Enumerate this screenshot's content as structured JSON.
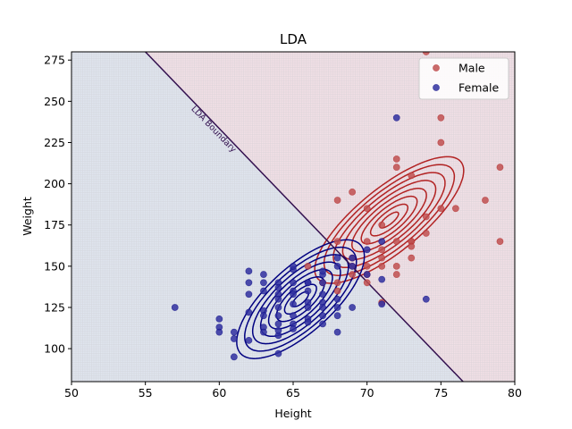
{
  "chart_data": {
    "type": "scatter",
    "title": "LDA",
    "xlabel": "Height",
    "ylabel": "Weight",
    "xlim": [
      50,
      80
    ],
    "ylim": [
      80,
      280
    ],
    "xticks": [
      50,
      55,
      60,
      65,
      70,
      75,
      80
    ],
    "yticks": [
      100,
      125,
      150,
      175,
      200,
      225,
      250,
      275
    ],
    "legend_position": "top-right",
    "boundary": {
      "label": "LDA Boundary",
      "points": [
        [
          55,
          280
        ],
        [
          76.5,
          80
        ]
      ],
      "color": "#33104f"
    },
    "regions": {
      "male_color": "#f2dfe6",
      "female_color": "#e0e5ef",
      "grid_color": "#c8c8cc"
    },
    "series": [
      {
        "name": "Male",
        "color": "#b22222",
        "marker_color": "#c05050",
        "contour": {
          "mean": [
            71.5,
            178
          ],
          "sd": [
            4.2,
            32
          ],
          "rho": 0.78,
          "levels": [
            0.15,
            0.3,
            0.45,
            0.6,
            0.75,
            0.9,
            1.05,
            1.2
          ]
        },
        "points": [
          [
            68,
            165
          ],
          [
            72,
            210
          ],
          [
            69,
            195
          ],
          [
            75,
            225
          ],
          [
            70,
            165
          ],
          [
            71,
            160
          ],
          [
            73,
            165
          ],
          [
            72,
            215
          ],
          [
            74,
            180
          ],
          [
            71,
            155
          ],
          [
            70,
            150
          ],
          [
            73,
            155
          ],
          [
            72,
            150
          ],
          [
            69,
            145
          ],
          [
            68,
            140
          ],
          [
            70,
            185
          ],
          [
            71,
            175
          ],
          [
            74,
            170
          ],
          [
            75,
            185
          ],
          [
            76,
            185
          ],
          [
            78,
            190
          ],
          [
            79,
            210
          ],
          [
            79,
            165
          ],
          [
            75,
            240
          ],
          [
            73,
            205
          ],
          [
            72,
            145
          ],
          [
            70,
            140
          ],
          [
            71,
            128
          ],
          [
            68,
            190
          ],
          [
            67,
            140
          ],
          [
            69,
            150
          ],
          [
            70,
            145
          ],
          [
            73,
            165
          ],
          [
            72,
            165
          ],
          [
            71,
            150
          ],
          [
            69,
            155
          ],
          [
            68,
            135
          ],
          [
            74,
            280
          ],
          [
            66,
            150
          ],
          [
            73,
            162
          ]
        ]
      },
      {
        "name": "Female",
        "color": "#000080",
        "marker_color": "#3030a0",
        "contour": {
          "mean": [
            65.5,
            130
          ],
          "sd": [
            3.6,
            30
          ],
          "rho": 0.72,
          "levels": [
            0.15,
            0.3,
            0.45,
            0.6,
            0.75,
            0.9,
            1.05,
            1.2
          ]
        },
        "points": [
          [
            57,
            125
          ],
          [
            60,
            118
          ],
          [
            60,
            113
          ],
          [
            60,
            110
          ],
          [
            61,
            110
          ],
          [
            61,
            106
          ],
          [
            61,
            95
          ],
          [
            62,
            147
          ],
          [
            62,
            140
          ],
          [
            62,
            133
          ],
          [
            62,
            105
          ],
          [
            63,
            145
          ],
          [
            63,
            135
          ],
          [
            63,
            123
          ],
          [
            63,
            120
          ],
          [
            63,
            113
          ],
          [
            63,
            110
          ],
          [
            64,
            140
          ],
          [
            64,
            137
          ],
          [
            64,
            133
          ],
          [
            64,
            130
          ],
          [
            64,
            125
          ],
          [
            64,
            120
          ],
          [
            64,
            115
          ],
          [
            64,
            108
          ],
          [
            64,
            97
          ],
          [
            65,
            148
          ],
          [
            65,
            140
          ],
          [
            65,
            135
          ],
          [
            65,
            133
          ],
          [
            65,
            127
          ],
          [
            65,
            120
          ],
          [
            65,
            115
          ],
          [
            65,
            112
          ],
          [
            66,
            140
          ],
          [
            66,
            128
          ],
          [
            66,
            125
          ],
          [
            66,
            118
          ],
          [
            66,
            116
          ],
          [
            67,
            145
          ],
          [
            67,
            140
          ],
          [
            67,
            133
          ],
          [
            67,
            128
          ],
          [
            67,
            125
          ],
          [
            67,
            120
          ],
          [
            67,
            115
          ],
          [
            68,
            150
          ],
          [
            68,
            130
          ],
          [
            68,
            125
          ],
          [
            68,
            120
          ],
          [
            68,
            110
          ],
          [
            69,
            155
          ],
          [
            69,
            150
          ],
          [
            69,
            125
          ],
          [
            70,
            160
          ],
          [
            70,
            145
          ],
          [
            71,
            165
          ],
          [
            71,
            142
          ],
          [
            71,
            127
          ],
          [
            72,
            240
          ],
          [
            74,
            130
          ],
          [
            66,
            135
          ],
          [
            63,
            140
          ],
          [
            65,
            150
          ],
          [
            67,
            147
          ],
          [
            68,
            155
          ],
          [
            64,
            111
          ],
          [
            66,
            140
          ],
          [
            62,
            122
          ]
        ]
      }
    ]
  }
}
